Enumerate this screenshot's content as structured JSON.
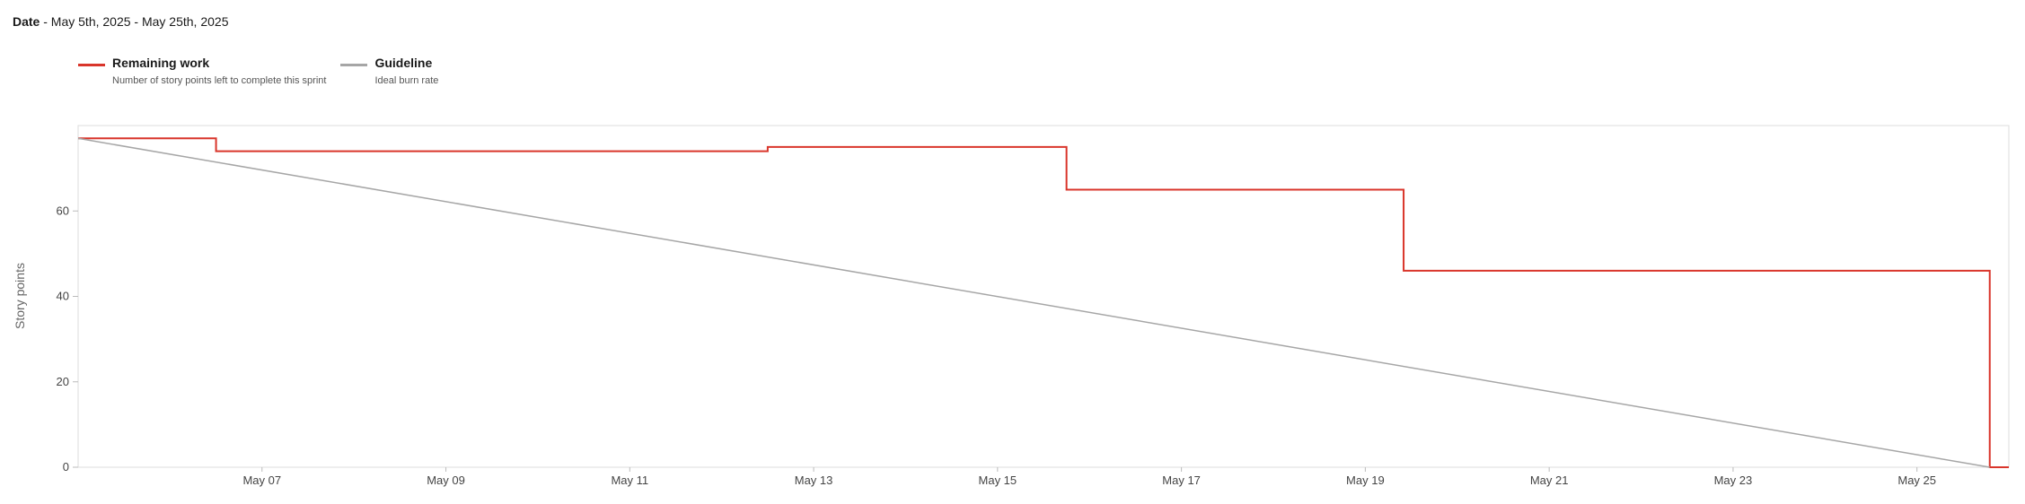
{
  "header": {
    "date_label": "Date",
    "date_range": "- May 5th, 2025 - May 25th, 2025"
  },
  "legend": [
    {
      "name": "Remaining work",
      "description": "Number of story points left to complete this sprint",
      "color": "#d9352b"
    },
    {
      "name": "Guideline",
      "description": "Ideal burn rate",
      "color": "#a6a6a6"
    }
  ],
  "chart_data": {
    "type": "line",
    "ylabel": "Story points",
    "xlabel": "",
    "x_type": "date",
    "xlim": [
      "2025-05-05",
      "2025-05-25T23:59"
    ],
    "ylim": [
      0,
      80
    ],
    "y_ticks": [
      0,
      20,
      40,
      60
    ],
    "x_ticks": [
      {
        "date": "2025-05-07",
        "label": "May 07"
      },
      {
        "date": "2025-05-09",
        "label": "May 09"
      },
      {
        "date": "2025-05-11",
        "label": "May 11"
      },
      {
        "date": "2025-05-13",
        "label": "May 13"
      },
      {
        "date": "2025-05-15",
        "label": "May 15"
      },
      {
        "date": "2025-05-17",
        "label": "May 17"
      },
      {
        "date": "2025-05-19",
        "label": "May 19"
      },
      {
        "date": "2025-05-21",
        "label": "May 21"
      },
      {
        "date": "2025-05-23",
        "label": "May 23"
      },
      {
        "date": "2025-05-25",
        "label": "May 25"
      }
    ],
    "grid": false,
    "legend_position": "top-left",
    "series": [
      {
        "name": "Remaining work",
        "color": "#d9352b",
        "step": true,
        "points": [
          [
            "2025-05-05",
            77
          ],
          [
            "2025-05-06T12:00",
            74
          ],
          [
            "2025-05-12T12:00",
            75
          ],
          [
            "2025-05-15T18:00",
            65
          ],
          [
            "2025-05-19T10:00",
            46
          ],
          [
            "2025-05-25T19:00",
            0
          ],
          [
            "2025-05-25T23:59",
            0
          ]
        ]
      },
      {
        "name": "Guideline",
        "color": "#a6a6a6",
        "step": false,
        "points": [
          [
            "2025-05-05",
            77
          ],
          [
            "2025-05-25T19:00",
            0
          ]
        ]
      }
    ]
  }
}
